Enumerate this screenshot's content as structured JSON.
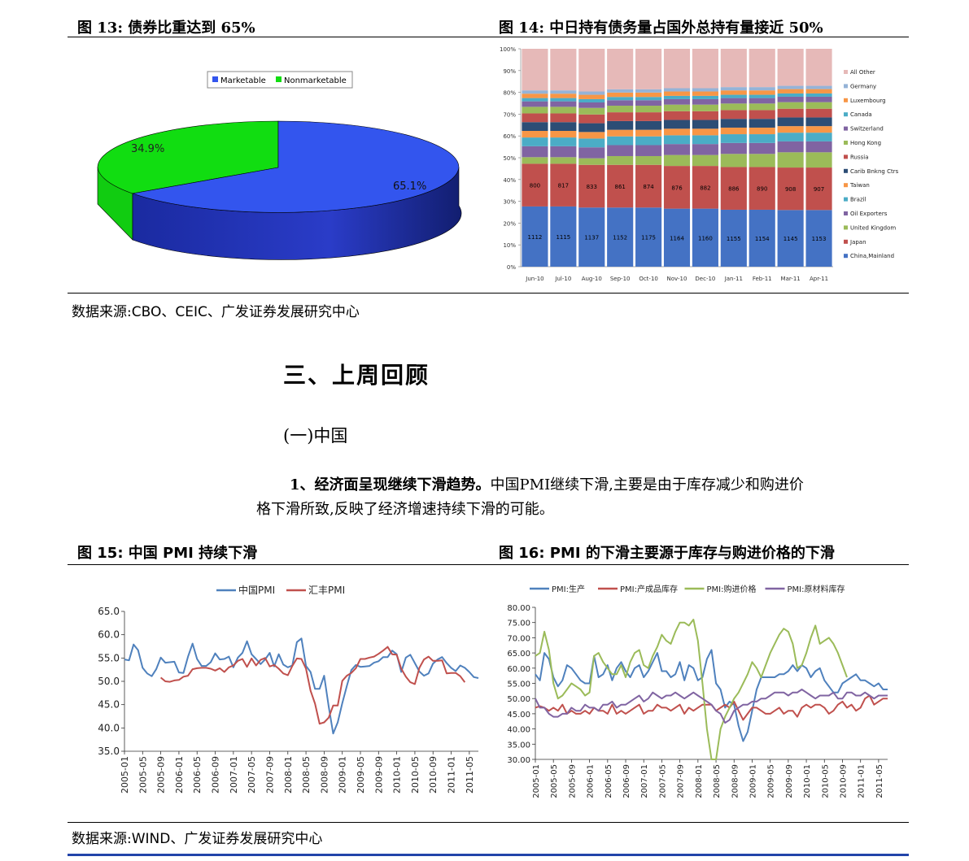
{
  "fig13": {
    "title": "图 13: 债券比重达到 65%",
    "chart_data": {
      "type": "pie",
      "labels": [
        "Marketable",
        "Nonmarketable"
      ],
      "values": [
        65.1,
        34.9
      ],
      "value_labels": [
        "65.1%",
        "34.9%"
      ],
      "colors": [
        "#3355ee",
        "#11dd11"
      ],
      "legend": "top"
    }
  },
  "fig14": {
    "title": "图 14: 中日持有债务量占国外总持有量接近 50%",
    "chart_data": {
      "type": "bar",
      "stacked": "percent",
      "categories": [
        "Jun-10",
        "Jul-10",
        "Aug-10",
        "Sep-10",
        "Oct-10",
        "Nov-10",
        "Dec-10",
        "Jan-11",
        "Feb-11",
        "Mar-11",
        "Apr-11"
      ],
      "y_ticks": [
        "0%",
        "10%",
        "20%",
        "30%",
        "40%",
        "50%",
        "60%",
        "70%",
        "80%",
        "90%",
        "100%"
      ],
      "legend": "right",
      "series": [
        {
          "name": "China,Mainland",
          "color": "#4472c4",
          "values": [
            27.5,
            27.5,
            27.0,
            27.0,
            27.0,
            26.5,
            26.5,
            26.0,
            26.0,
            26.0,
            26.0
          ],
          "labels": [
            1112,
            1115,
            1137,
            1152,
            1175,
            1164,
            1160,
            1155,
            1154,
            1145,
            1153
          ]
        },
        {
          "name": "Japan",
          "color": "#c0504d",
          "values": [
            19.5,
            19.5,
            19.5,
            19.5,
            19.5,
            19.5,
            19.5,
            19.5,
            19.5,
            19.5,
            19.5
          ],
          "labels": [
            800,
            817,
            833,
            861,
            874,
            876,
            882,
            886,
            890,
            908,
            907
          ]
        },
        {
          "name": "United Kingdom",
          "color": "#9bbb59",
          "values": [
            3,
            3,
            3,
            4,
            4,
            5,
            5,
            6,
            6,
            7,
            7
          ]
        },
        {
          "name": "Oil Exporters",
          "color": "#8064a2",
          "values": [
            5,
            5,
            5,
            5,
            5,
            5,
            5,
            5,
            5,
            5,
            5
          ]
        },
        {
          "name": "Brazil",
          "color": "#4bacc6",
          "values": [
            4,
            4,
            4,
            4,
            4,
            4,
            4,
            4,
            4,
            4,
            4
          ]
        },
        {
          "name": "Taiwan",
          "color": "#f79646",
          "values": [
            3,
            3,
            3,
            3,
            3,
            3,
            3,
            3,
            3,
            3,
            3
          ]
        },
        {
          "name": "Carib Bnkng Ctrs",
          "color": "#2c4d75",
          "values": [
            4,
            4,
            4,
            4,
            4,
            4,
            4,
            4,
            4,
            4,
            4
          ]
        },
        {
          "name": "Russia",
          "color": "#c0504d",
          "values": [
            4,
            4,
            4,
            4,
            4,
            4,
            4,
            4,
            4,
            4,
            4
          ]
        },
        {
          "name": "Hong Kong",
          "color": "#9bbb59",
          "values": [
            3,
            3,
            3,
            3,
            3,
            3,
            3,
            3,
            3,
            3,
            3
          ]
        },
        {
          "name": "Switzerland",
          "color": "#8064a2",
          "values": [
            2.5,
            2.5,
            2.5,
            2.5,
            2.5,
            2.5,
            2.5,
            2.5,
            2.5,
            2.5,
            2.5
          ]
        },
        {
          "name": "Canada",
          "color": "#4bacc6",
          "values": [
            1.5,
            1.5,
            1.5,
            1.5,
            1.5,
            1.5,
            1.5,
            1.5,
            1.5,
            1.5,
            1.5
          ]
        },
        {
          "name": "Luxembourg",
          "color": "#f79646",
          "values": [
            2,
            2,
            2,
            2,
            2,
            2,
            2,
            2,
            2,
            2,
            2
          ]
        },
        {
          "name": "Germany",
          "color": "#95b3d7",
          "values": [
            1.5,
            1.5,
            1.5,
            1.5,
            1.5,
            1.5,
            1.5,
            1.5,
            1.5,
            1.5,
            1.5
          ]
        },
        {
          "name": "All Other",
          "color": "#e6b9b8",
          "values": [
            19,
            19,
            19.5,
            18.5,
            18.5,
            18,
            18,
            17.5,
            17.5,
            17,
            17
          ]
        }
      ]
    }
  },
  "source1": {
    "label": "数据来源:",
    "text": "CBO、CEIC、广发证券发展研究中心"
  },
  "section": {
    "heading": "三、上周回顾",
    "subheading": "(一)中国"
  },
  "paragraph": {
    "bold": "1、经济面呈现继续下滑趋势。",
    "line1": "中国PMI继续下滑,主要是由于库存减少和购进价",
    "line2": "格下滑所致,反映了经济增速持续下滑的可能。"
  },
  "fig15": {
    "title": "图 15: 中国 PMI 持续下滑",
    "chart_data": {
      "type": "line",
      "legend": "top",
      "ylim": [
        35,
        65
      ],
      "y_ticks": [
        "35.0",
        "40.0",
        "45.0",
        "50.0",
        "55.0",
        "60.0",
        "65.0"
      ],
      "x_ticks": [
        "2005-01",
        "2005-05",
        "2005-09",
        "2006-01",
        "2006-05",
        "2006-09",
        "2007-01",
        "2007-05",
        "2007-09",
        "2008-01",
        "2008-05",
        "2008-09",
        "2009-01",
        "2009-05",
        "2009-09",
        "2010-01",
        "2010-05",
        "2010-09",
        "2011-01",
        "2011-05"
      ],
      "series": [
        {
          "name": "中国PMI",
          "color": "#4f81bd",
          "start": "2005-01",
          "values": [
            54.7,
            54.5,
            57.9,
            56.7,
            52.9,
            51.7,
            51.1,
            52.6,
            55.1,
            54.0,
            54.1,
            54.2,
            51.9,
            51.8,
            55.3,
            58.1,
            54.8,
            53.3,
            53.3,
            54.1,
            56.0,
            54.7,
            54.8,
            55.3,
            53.0,
            55.1,
            56.1,
            58.6,
            55.8,
            54.8,
            53.7,
            54.7,
            56.1,
            53.2,
            55.8,
            53.6,
            53.0,
            53.4,
            58.4,
            59.2,
            53.3,
            52.0,
            48.4,
            48.4,
            51.2,
            44.6,
            38.8,
            41.2,
            45.3,
            49.0,
            52.4,
            53.5,
            53.1,
            53.2,
            53.3,
            54.0,
            54.3,
            55.2,
            55.2,
            56.6,
            55.8,
            52.0,
            55.1,
            55.7,
            53.9,
            52.1,
            51.2,
            51.7,
            53.8,
            54.7,
            55.2,
            53.9,
            52.9,
            52.2,
            53.4,
            52.9,
            52.0,
            50.9,
            50.7
          ]
        },
        {
          "name": "汇丰PMI",
          "color": "#c0504d",
          "start": "2005-09",
          "values": [
            50.8,
            50.0,
            49.9,
            50.2,
            50.3,
            51.0,
            51.2,
            52.6,
            52.8,
            52.9,
            52.9,
            52.7,
            52.3,
            52.8,
            52.0,
            53.0,
            53.4,
            54.4,
            54.8,
            53.1,
            54.9,
            53.4,
            54.6,
            55.0,
            53.2,
            53.5,
            52.7,
            51.7,
            51.3,
            53.3,
            54.9,
            54.8,
            52.7,
            48.0,
            45.2,
            40.9,
            41.2,
            42.2,
            44.8,
            44.8,
            50.1,
            51.2,
            51.8,
            52.8,
            54.8,
            54.8,
            55.1,
            55.3,
            55.9,
            56.6,
            57.4,
            55.8,
            55.7,
            52.7,
            51.0,
            49.8,
            49.4,
            52.9,
            54.7,
            55.3,
            54.4,
            54.4,
            54.5,
            51.7,
            51.8,
            51.8,
            51.1,
            49.8
          ]
        }
      ]
    }
  },
  "fig16": {
    "title": "图 16: PMI 的下滑主要源于库存与购进价格的下滑",
    "chart_data": {
      "type": "line",
      "legend": "top",
      "ylim": [
        30,
        80
      ],
      "y_ticks": [
        "30.00",
        "35.00",
        "40.00",
        "45.00",
        "50.00",
        "55.00",
        "60.00",
        "65.00",
        "70.00",
        "75.00",
        "80.00"
      ],
      "x_ticks": [
        "2005-01",
        "2005-05",
        "2005-09",
        "2006-01",
        "2006-05",
        "2006-09",
        "2007-01",
        "2007-05",
        "2007-09",
        "2008-01",
        "2008-05",
        "2008-09",
        "2009-01",
        "2009-05",
        "2009-09",
        "2010-01",
        "2010-05",
        "2010-09",
        "2011-01",
        "2011-05"
      ],
      "series": [
        {
          "name": "PMI:生产",
          "color": "#4f81bd",
          "values": [
            58,
            56,
            65,
            63,
            57,
            54,
            56,
            61,
            60,
            58,
            56,
            55,
            55,
            64,
            57,
            58,
            61,
            56,
            60,
            62,
            59,
            57,
            60,
            61,
            57,
            59,
            62,
            65,
            59,
            59,
            57,
            58,
            62,
            56,
            61,
            60,
            56,
            57,
            63,
            66,
            55,
            53,
            47,
            49,
            48,
            41,
            36,
            39,
            46,
            53,
            57,
            57,
            57,
            57,
            58,
            58,
            59,
            61,
            59,
            61,
            60,
            57,
            59,
            60,
            56,
            54,
            52,
            52,
            55,
            56,
            57,
            58,
            56,
            56,
            55,
            54,
            55,
            53,
            53
          ]
        },
        {
          "name": "PMI:产成品库存",
          "color": "#c0504d",
          "values": [
            47,
            47.5,
            47,
            46,
            47,
            46,
            48,
            45,
            46,
            45,
            45,
            46,
            45,
            47,
            46,
            46,
            45,
            48,
            45,
            46,
            45,
            46,
            47,
            48,
            45,
            46,
            46,
            48,
            47,
            47,
            46,
            47,
            48,
            45,
            47,
            46,
            47,
            48,
            48,
            48,
            46,
            47,
            48,
            47,
            49,
            46,
            43,
            45,
            47,
            47,
            46,
            45,
            45,
            46,
            47,
            45,
            46,
            46,
            44,
            47,
            48,
            47,
            48,
            48,
            47,
            45,
            46,
            48,
            49,
            47,
            48,
            46,
            47,
            50,
            51,
            48,
            49,
            50,
            50
          ]
        },
        {
          "name": "PMI:购进价格",
          "color": "#9bbb59",
          "values": [
            64,
            65,
            72,
            66,
            55,
            50,
            51,
            53,
            55,
            54,
            53,
            51,
            52,
            64,
            65,
            62,
            60,
            58,
            58,
            61,
            57,
            62,
            65,
            66,
            61,
            60,
            64,
            67,
            71,
            69,
            68,
            72,
            75,
            75,
            74,
            76,
            69,
            55,
            40,
            28,
            30,
            40,
            44,
            47,
            50,
            52,
            55,
            58,
            62,
            60,
            57,
            61,
            65,
            68,
            71,
            73,
            72,
            68,
            60,
            61,
            65,
            70,
            74,
            68,
            69,
            70,
            68,
            65,
            61,
            57
          ]
        },
        {
          "name": "PMI:原材料库存",
          "color": "#8064a2",
          "values": [
            50,
            47,
            47,
            45,
            44,
            44,
            45,
            45,
            47,
            46,
            46,
            48,
            47,
            47,
            46,
            48,
            48,
            49,
            47,
            48,
            48,
            49,
            50,
            51,
            49,
            50,
            52,
            51,
            50,
            51,
            51,
            52,
            51,
            50,
            51,
            52,
            51,
            50,
            49,
            48,
            46,
            45,
            42,
            43,
            46,
            47,
            48,
            48,
            49,
            49,
            50,
            50,
            51,
            52,
            52,
            52,
            51,
            52,
            52,
            53,
            52,
            51,
            50,
            51,
            51,
            51,
            52,
            50,
            50,
            52,
            52,
            51,
            51,
            52,
            51,
            50,
            51,
            51,
            51
          ]
        }
      ]
    }
  },
  "source2": {
    "label": "数据来源:",
    "text": "WIND、广发证券发展研究中心"
  }
}
